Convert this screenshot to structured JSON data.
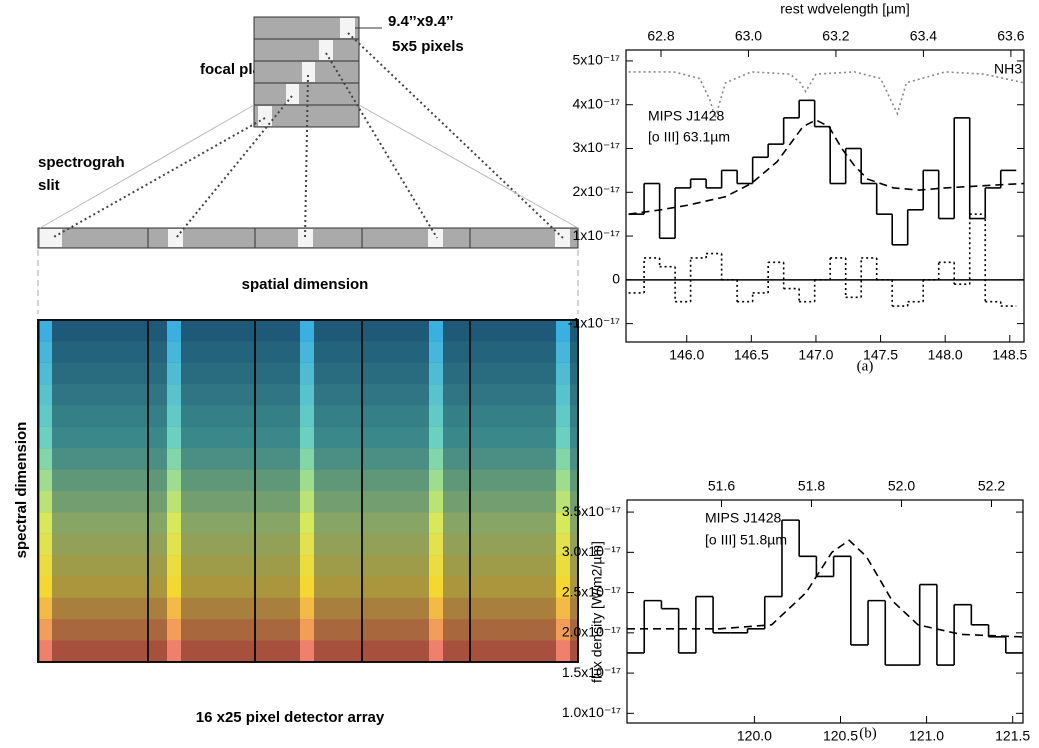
{
  "diagram": {
    "pixel_size": "9.4’’x9.4’’",
    "pixel_count": "5x5 pixels",
    "focal_plane": "focal plance",
    "slit_label": [
      "spectrograh",
      "slit"
    ],
    "spatial_dimension": "spatial dimension",
    "spectral_dimension": "spectral dimension",
    "detector_array": "16 x25 pixel detector array"
  },
  "chart_data": [
    {
      "type": "step",
      "panel_label": "(a)",
      "top_axis_label": "rest wdvelength [µm]",
      "annotations": [
        "NH3",
        "MIPS J1428",
        "[o III] 63.1µm"
      ],
      "xlim": [
        145.53,
        148.61
      ],
      "xticks": [
        {
          "value": 146,
          "label": "146.0"
        },
        146.5,
        {
          "value": 147,
          "label": "147.0"
        },
        147.5,
        {
          "value": 148,
          "label": "148.0"
        },
        148.5
      ],
      "x2lim": [
        62.72,
        63.63
      ],
      "x2ticks": [
        62.8,
        {
          "value": 63,
          "label": "63.0"
        },
        63.2,
        63.4,
        63.6
      ],
      "ylim": [
        -1.42e-17,
        5.25e-17
      ],
      "yticks": [
        {
          "value": 5e-17,
          "label": "5x10⁻¹⁷"
        },
        {
          "value": 4e-17,
          "label": "4x10⁻¹⁷"
        },
        {
          "value": 3e-17,
          "label": "3x10⁻¹⁷"
        },
        {
          "value": 2e-17,
          "label": "2x10⁻¹⁷"
        },
        {
          "value": 1e-17,
          "label": "1x10⁻¹⁷"
        },
        0,
        {
          "value": -1e-17,
          "label": "-1x10⁻¹⁷"
        }
      ],
      "zero_line": true,
      "series": [
        {
          "color": "#000000",
          "style": "solid",
          "bins": [
            145.55,
            145.67,
            145.79,
            145.91,
            146.03,
            146.15,
            146.27,
            146.39,
            146.51,
            146.63,
            146.75,
            146.87,
            146.99,
            147.11,
            147.23,
            147.35,
            147.47,
            147.59,
            147.71,
            147.83,
            147.95,
            148.07,
            148.19,
            148.31,
            148.43,
            148.55
          ],
          "values": [
            1.5e-17,
            2.2e-17,
            9.5e-18,
            2.1e-17,
            2.3e-17,
            2.1e-17,
            2.5e-17,
            2.2e-17,
            2.8e-17,
            3.1e-17,
            3.7e-17,
            4.1e-17,
            3.5e-17,
            2.2e-17,
            3e-17,
            2.2e-17,
            1.5e-17,
            8e-18,
            1.6e-17,
            2.5e-17,
            1.4e-17,
            3.7e-17,
            1.4e-17,
            2.1e-17,
            2.5e-17
          ]
        },
        {
          "color": "#000000",
          "style": "dotted",
          "bins": [
            145.55,
            145.67,
            145.79,
            145.91,
            146.03,
            146.15,
            146.27,
            146.39,
            146.51,
            146.63,
            146.75,
            146.87,
            146.99,
            147.11,
            147.23,
            147.35,
            147.47,
            147.59,
            147.71,
            147.83,
            147.95,
            148.07,
            148.19,
            148.31,
            148.43,
            148.55
          ],
          "values": [
            -3e-18,
            5e-18,
            3e-18,
            -5e-18,
            5e-18,
            6e-18,
            0.0,
            -5e-18,
            -3e-18,
            4e-18,
            -2e-18,
            -5e-18,
            0.0,
            5e-18,
            -4e-18,
            5e-18,
            0.0,
            -6e-18,
            -5e-18,
            0.0,
            4e-18,
            -1e-18,
            1.5e-17,
            -5e-18,
            -6e-18
          ]
        },
        {
          "color": "#000000",
          "style": "dashed",
          "x": [
            145.55,
            145.8,
            146.0,
            146.3,
            146.5,
            146.7,
            146.8,
            146.9,
            147.0,
            147.1,
            147.2,
            147.3,
            147.4,
            147.6,
            147.8,
            148.0,
            148.3,
            148.61
          ],
          "values": [
            1.5e-17,
            1.6e-17,
            1.7e-17,
            1.9e-17,
            2.2e-17,
            2.7e-17,
            3.1e-17,
            3.5e-17,
            3.65e-17,
            3.5e-17,
            3e-17,
            2.6e-17,
            2.3e-17,
            2.1e-17,
            2.05e-17,
            2.1e-17,
            2.15e-17,
            2.2e-17
          ]
        },
        {
          "color": "#888888",
          "style": "dotted",
          "x": [
            145.55,
            145.9,
            146.1,
            146.18,
            146.22,
            146.3,
            146.5,
            146.8,
            146.88,
            146.92,
            147.0,
            147.3,
            147.5,
            147.58,
            147.63,
            147.7,
            148.0,
            148.3,
            148.61
          ],
          "values": [
            4.75e-17,
            4.75e-17,
            4.6e-17,
            4.1e-17,
            3.7e-17,
            4.5e-17,
            4.75e-17,
            4.7e-17,
            4.5e-17,
            4.3e-17,
            4.7e-17,
            4.75e-17,
            4.6e-17,
            4.1e-17,
            3.8e-17,
            4.5e-17,
            4.75e-17,
            4.7e-17,
            4.5e-17
          ]
        }
      ]
    },
    {
      "type": "step",
      "panel_label": "(b)",
      "y_label": "flux density [W/m2/µm]",
      "annotations": [
        "MIPS J1428",
        "[o III] 51.8µm"
      ],
      "xlim": [
        119.26,
        121.56
      ],
      "xticks": [
        {
          "value": 120,
          "label": "120.0"
        },
        120.5,
        {
          "value": 121,
          "label": "121.0"
        },
        121.5
      ],
      "x2lim": [
        51.39,
        52.27
      ],
      "x2ticks": [
        51.6,
        51.8,
        {
          "value": 52,
          "label": "52.0"
        },
        52.2
      ],
      "ylim": [
        8.8e-18,
        3.65e-17
      ],
      "yticks": [
        {
          "value": 3.5e-17,
          "label": "3.5x10⁻¹⁷"
        },
        {
          "value": 3e-17,
          "label": "3.0x10⁻¹⁷"
        },
        {
          "value": 2.5e-17,
          "label": "2.5x10⁻¹⁷"
        },
        {
          "value": 2e-17,
          "label": "2.0x10⁻¹⁷"
        },
        {
          "value": 1.5e-17,
          "label": "1.5x10⁻¹⁷"
        },
        {
          "value": 1e-17,
          "label": "1.0x10⁻¹⁷"
        }
      ],
      "series": [
        {
          "color": "#000000",
          "style": "solid",
          "bins": [
            119.26,
            119.36,
            119.46,
            119.56,
            119.66,
            119.76,
            119.86,
            119.96,
            120.06,
            120.16,
            120.26,
            120.36,
            120.46,
            120.56,
            120.66,
            120.76,
            120.86,
            120.96,
            121.06,
            121.16,
            121.26,
            121.36,
            121.46,
            121.56
          ],
          "values": [
            1.75e-17,
            2.4e-17,
            2.3e-17,
            1.75e-17,
            2.45e-17,
            2e-17,
            2e-17,
            2.05e-17,
            2.45e-17,
            3.4e-17,
            2.95e-17,
            2.7e-17,
            2.95e-17,
            1.85e-17,
            2.4e-17,
            1.6e-17,
            1.6e-17,
            2.6e-17,
            1.6e-17,
            2.35e-17,
            2.1e-17,
            1.95e-17,
            1.75e-17
          ]
        },
        {
          "color": "#000000",
          "style": "dashed",
          "x": [
            119.26,
            119.8,
            120.1,
            120.3,
            120.45,
            120.55,
            120.65,
            120.8,
            120.95,
            121.2,
            121.56
          ],
          "values": [
            2.05e-17,
            2.05e-17,
            2.1e-17,
            2.5e-17,
            3e-17,
            3.15e-17,
            2.95e-17,
            2.4e-17,
            2.1e-17,
            1.98e-17,
            1.95e-17
          ]
        }
      ]
    }
  ]
}
